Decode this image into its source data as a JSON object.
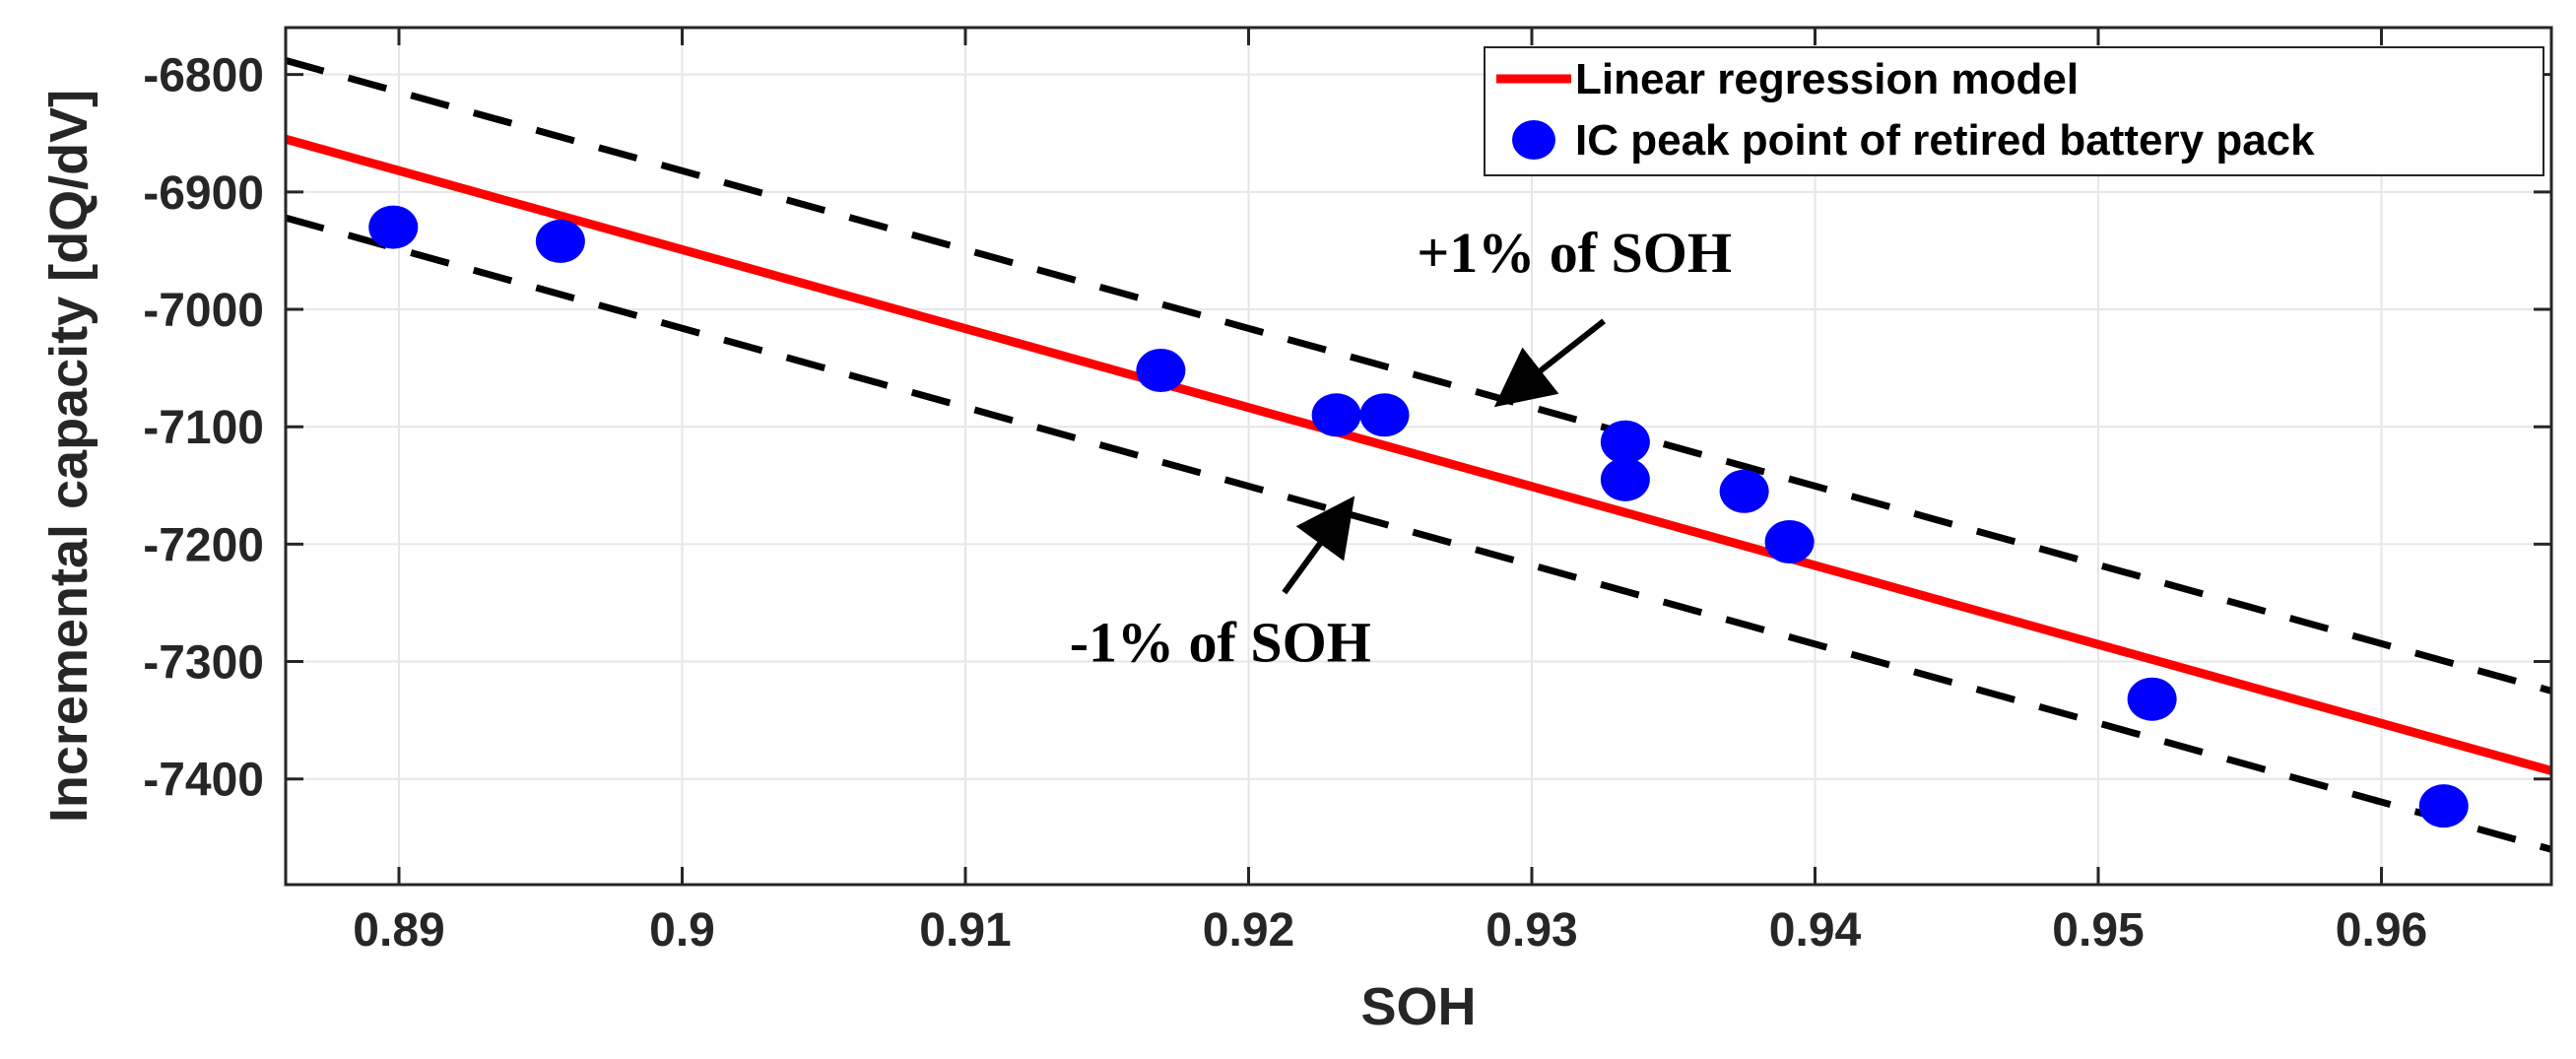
{
  "chart_data": {
    "type": "scatter",
    "title": "",
    "xlabel": "SOH",
    "ylabel": "Incremental capacity [dQ/dV]",
    "xlim": [
      0.886,
      0.966
    ],
    "ylim": [
      -7490,
      -6760
    ],
    "xticks": [
      0.89,
      0.9,
      0.91,
      0.92,
      0.93,
      0.94,
      0.95,
      0.96
    ],
    "xtick_labels": [
      "0.89",
      "0.9",
      "0.91",
      "0.92",
      "0.93",
      "0.94",
      "0.95",
      "0.96"
    ],
    "yticks": [
      -6800,
      -6900,
      -7000,
      -7100,
      -7200,
      -7300,
      -7400
    ],
    "ytick_labels": [
      "-6800",
      "-6900",
      "-7000",
      "-7100",
      "-7200",
      "-7300",
      "-7400"
    ],
    "grid": true,
    "legend_position": "top-right",
    "series": [
      {
        "name": "Linear regression model",
        "kind": "line",
        "color": "#ff0000",
        "x": [
          0.886,
          0.966
        ],
        "y": [
          -6855,
          -7393
        ]
      },
      {
        "name": "+1% of SOH bound",
        "kind": "dashed-line",
        "color": "#000000",
        "x": [
          0.886,
          0.966
        ],
        "y": [
          -6788,
          -7325
        ]
      },
      {
        "name": "-1% of SOH bound",
        "kind": "dashed-line",
        "color": "#000000",
        "x": [
          0.886,
          0.966
        ],
        "y": [
          -6922,
          -7460
        ]
      },
      {
        "name": "IC peak point of retired battery pack",
        "kind": "scatter",
        "color": "#0000ff",
        "x": [
          0.8898,
          0.8957,
          0.9169,
          0.9231,
          0.9248,
          0.9333,
          0.9333,
          0.9375,
          0.9391,
          0.9519,
          0.9622
        ],
        "y": [
          -6930,
          -6942,
          -7052,
          -7090,
          -7090,
          -7113,
          -7145,
          -7155,
          -7198,
          -7332,
          -7423
        ]
      }
    ],
    "legend": [
      {
        "label": "Linear regression model",
        "marker": "line",
        "color": "#ff0000"
      },
      {
        "label": "IC peak point of retired battery pack",
        "marker": "dot",
        "color": "#0000ff"
      }
    ],
    "annotations": [
      {
        "text": "+1% of SOH",
        "points_to": {
          "x": 0.929,
          "y": -7077
        },
        "text_at": {
          "x": 0.9315,
          "y": -6968
        }
      },
      {
        "text": "-1% of SOH",
        "points_to": {
          "x": 0.9235,
          "y": -7167
        },
        "text_at": {
          "x": 0.919,
          "y": -7300
        }
      }
    ]
  }
}
